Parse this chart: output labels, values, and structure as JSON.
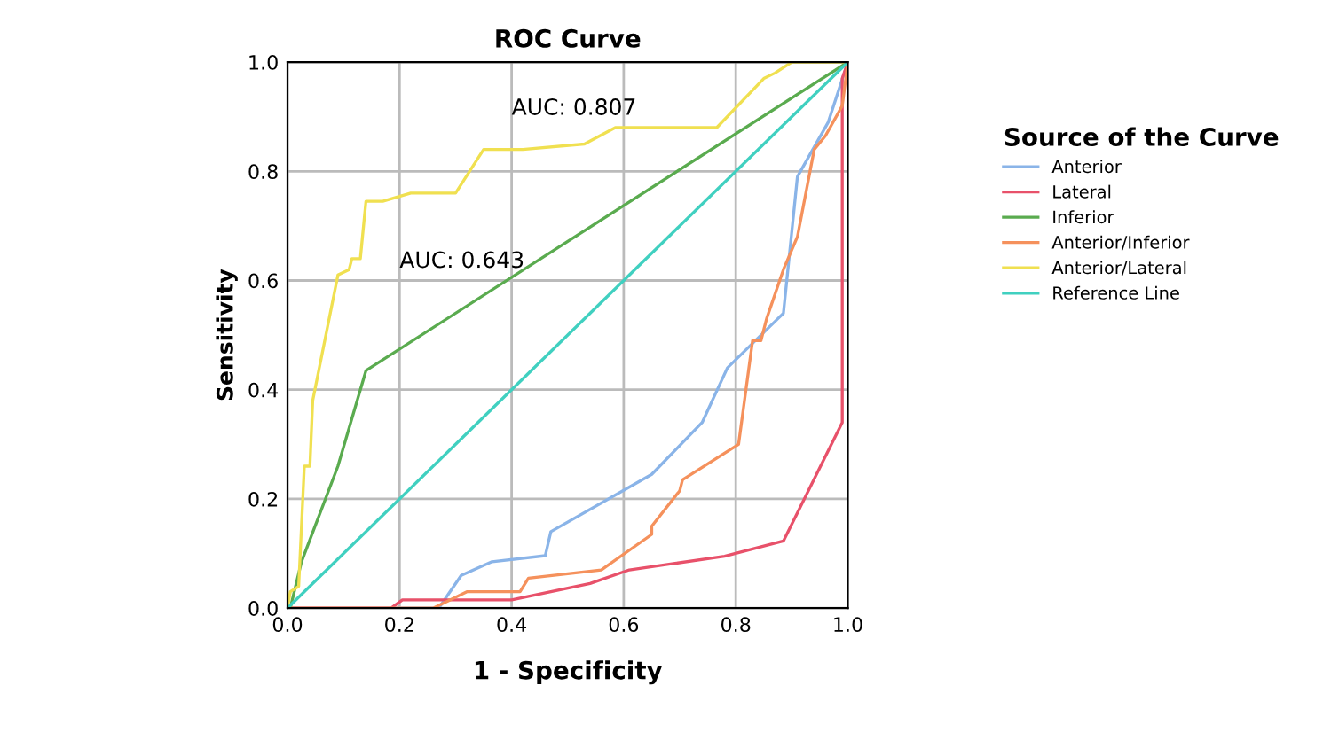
{
  "chart_data": {
    "type": "line",
    "title": "ROC Curve",
    "xlabel": "1 - Specificity",
    "ylabel": "Sensitivity",
    "legend_title": "Source of the Curve",
    "legend": "right",
    "grid": true,
    "xlim": [
      0,
      1
    ],
    "ylim": [
      0,
      1
    ],
    "xticks": [
      {
        "value": 0,
        "label": "0.0"
      },
      {
        "value": 0.2,
        "label": "0.2"
      },
      {
        "value": 0.4,
        "label": "0.4"
      },
      {
        "value": 0.6,
        "label": "0.6"
      },
      {
        "value": 0.8,
        "label": "0.8"
      },
      {
        "value": 1,
        "label": "1.0"
      }
    ],
    "yticks": [
      {
        "value": 0,
        "label": "0.0"
      },
      {
        "value": 0.2,
        "label": "0.2"
      },
      {
        "value": 0.4,
        "label": "0.4"
      },
      {
        "value": 0.6,
        "label": "0.6"
      },
      {
        "value": 0.8,
        "label": "0.8"
      },
      {
        "value": 1,
        "label": "1.0"
      }
    ],
    "series": [
      {
        "name": "Anterior",
        "color": "#8ab4e8",
        "x": [
          0,
          0.27,
          0.31,
          0.365,
          0.46,
          0.47,
          0.65,
          0.74,
          0.785,
          0.875,
          0.885,
          0.91,
          0.965,
          1
        ],
        "values": [
          0,
          0,
          0.06,
          0.085,
          0.096,
          0.14,
          0.245,
          0.34,
          0.44,
          0.53,
          0.54,
          0.79,
          0.89,
          1
        ]
      },
      {
        "name": "Lateral",
        "color": "#e8516a",
        "x": [
          0,
          0.185,
          0.205,
          0.4,
          0.47,
          0.54,
          0.61,
          0.78,
          0.885,
          0.99,
          0.99,
          1
        ],
        "values": [
          0,
          0,
          0.015,
          0.015,
          0.03,
          0.045,
          0.07,
          0.095,
          0.123,
          0.34,
          0.97,
          1
        ]
      },
      {
        "name": "Inferior",
        "color": "#5aab4f",
        "x": [
          0,
          0.005,
          0.025,
          0.09,
          0.14,
          1
        ],
        "values": [
          0,
          0,
          0.085,
          0.26,
          0.435,
          1
        ]
      },
      {
        "name": "Anterior/Inferior",
        "color": "#f5915c",
        "x": [
          0,
          0.26,
          0.32,
          0.415,
          0.43,
          0.56,
          0.65,
          0.65,
          0.7,
          0.705,
          0.805,
          0.83,
          0.845,
          0.855,
          0.885,
          0.91,
          0.94,
          0.96,
          0.99,
          1
        ],
        "values": [
          0,
          0,
          0.03,
          0.03,
          0.055,
          0.07,
          0.135,
          0.15,
          0.215,
          0.235,
          0.3,
          0.49,
          0.49,
          0.53,
          0.62,
          0.68,
          0.84,
          0.865,
          0.92,
          1
        ]
      },
      {
        "name": "Anterior/Lateral",
        "color": "#f0e050",
        "x": [
          0,
          0.005,
          0.02,
          0.03,
          0.04,
          0.045,
          0.09,
          0.11,
          0.115,
          0.13,
          0.14,
          0.17,
          0.22,
          0.3,
          0.35,
          0.42,
          0.53,
          0.585,
          0.766,
          0.85,
          0.87,
          0.9,
          1
        ],
        "values": [
          0,
          0.03,
          0.04,
          0.26,
          0.26,
          0.38,
          0.61,
          0.62,
          0.64,
          0.64,
          0.745,
          0.745,
          0.76,
          0.76,
          0.84,
          0.84,
          0.85,
          0.88,
          0.88,
          0.97,
          0.98,
          1,
          1
        ]
      },
      {
        "name": "Reference Line",
        "color": "#40d0c0",
        "x": [
          0,
          1
        ],
        "values": [
          0,
          1
        ]
      }
    ],
    "annotations": [
      "AUC: 0.807",
      "AUC: 0.643"
    ]
  }
}
